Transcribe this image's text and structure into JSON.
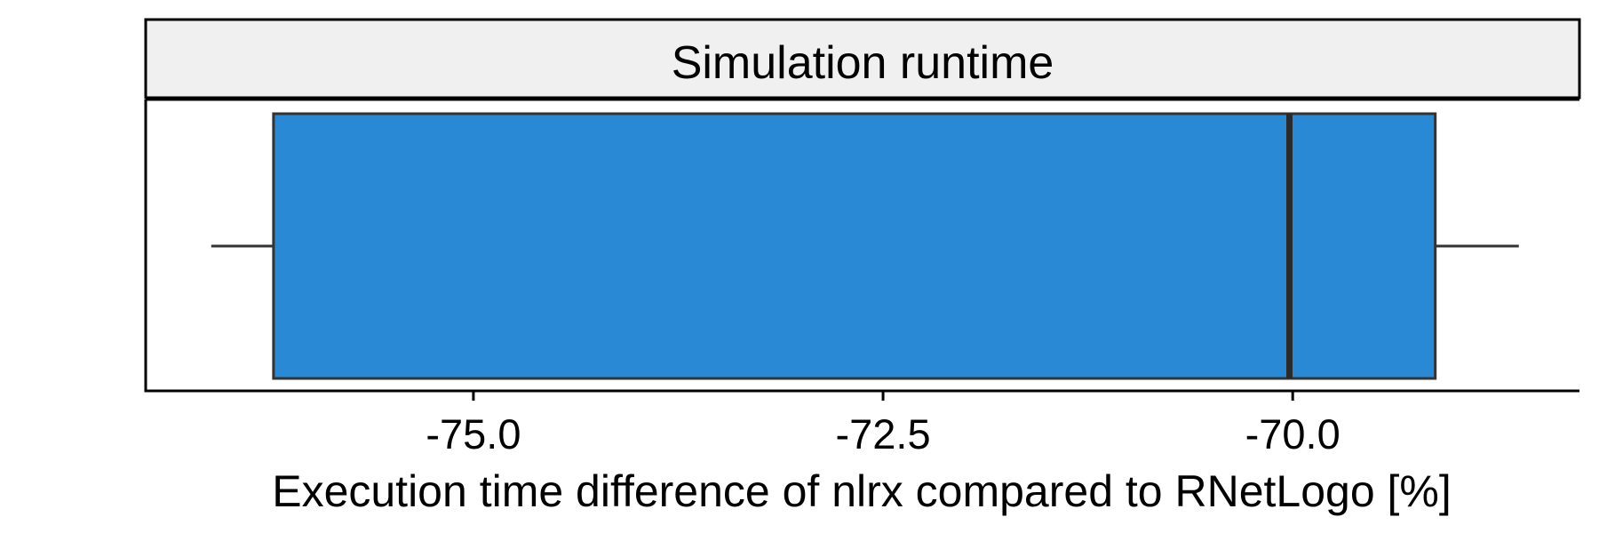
{
  "chart_data": {
    "type": "boxplot",
    "facet_title": "Simulation runtime",
    "xlabel": "Execution time difference of nlrx compared to RNetLogo [%]",
    "ylabel": "",
    "xlim": [
      -77.0,
      -68.25
    ],
    "xticks": [
      -75.0,
      -72.5,
      -70.0
    ],
    "xtick_labels": [
      "-75.0",
      "-72.5",
      "-70.0"
    ],
    "grid": false,
    "legend": "none",
    "box": {
      "whisker_low": -76.6,
      "q1": -76.22,
      "median": -70.02,
      "q3": -69.13,
      "whisker_high": -68.62
    },
    "colors": {
      "box_fill": "#2989d4",
      "box_stroke": "#333333",
      "strip_fill": "#f0f0f0",
      "axis": "#000000"
    }
  }
}
